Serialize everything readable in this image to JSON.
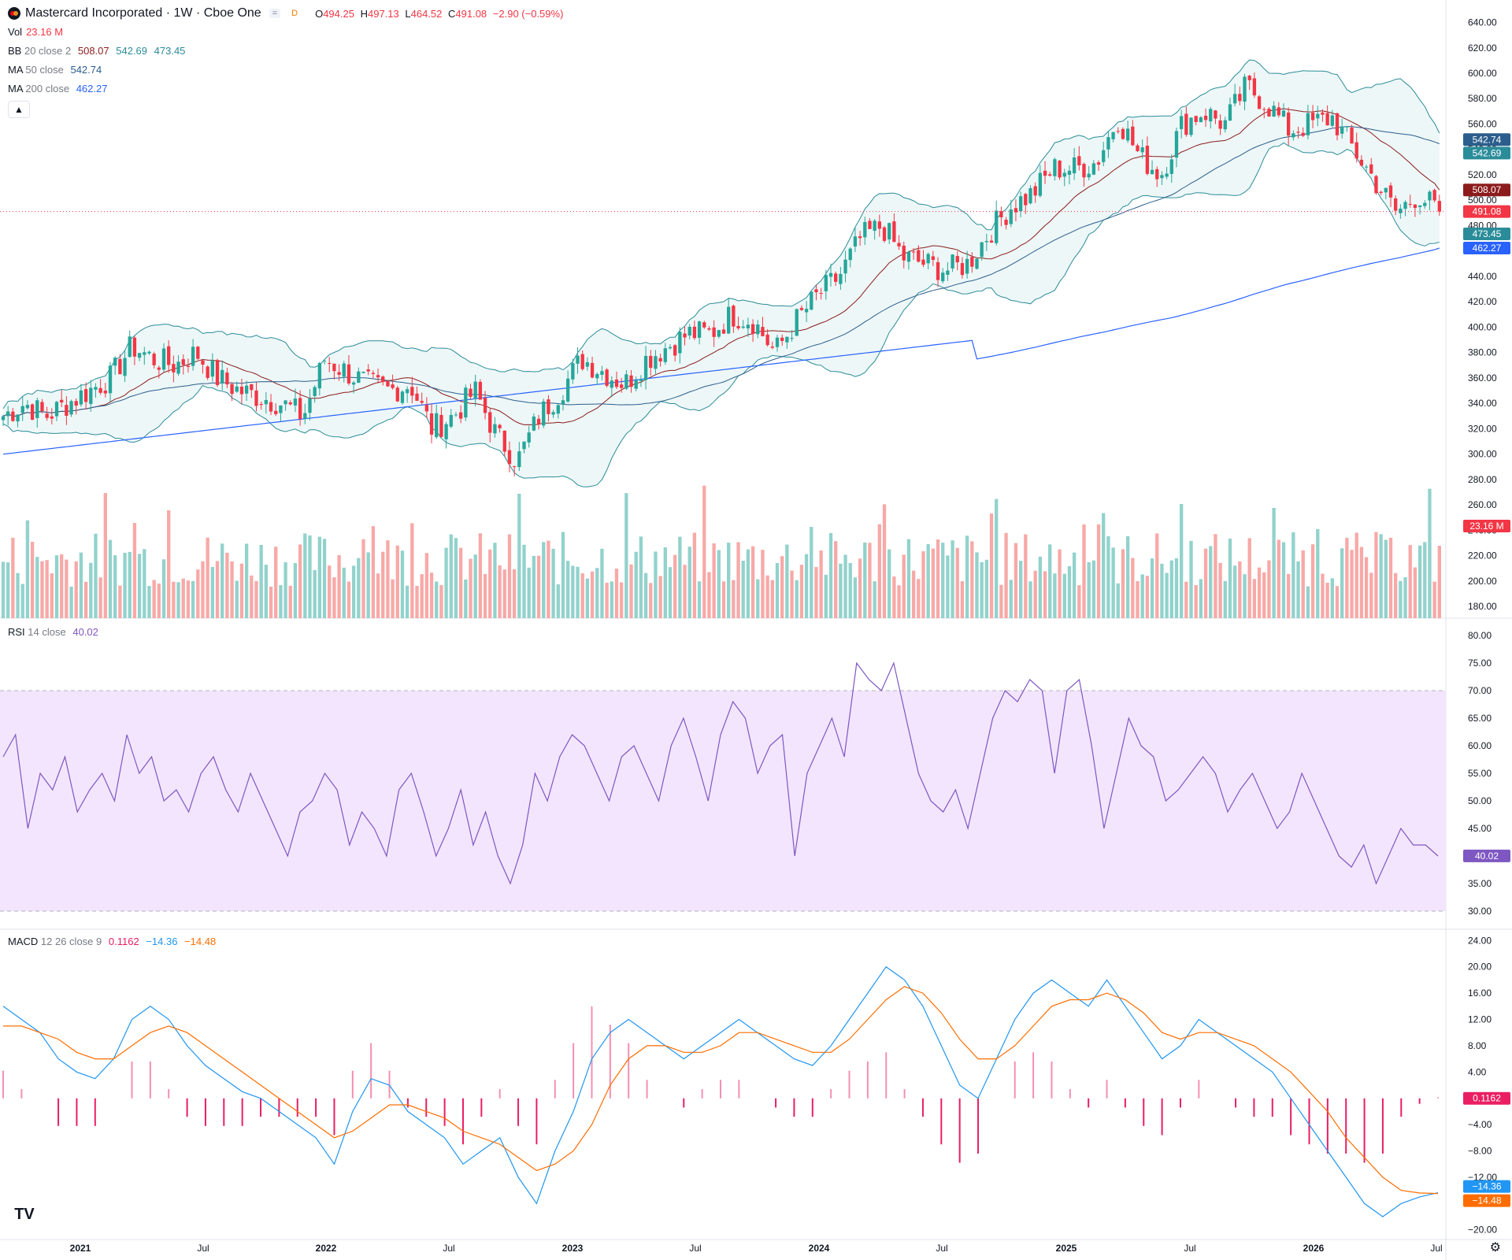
{
  "header": {
    "symbol": "Mastercard Incorporated · 1W · Cboe One",
    "badge_eq": "=",
    "badge_d": "D",
    "o_label": "O",
    "o_value": "494.25",
    "h_label": "H",
    "h_value": "497.13",
    "l_label": "L",
    "l_value": "464.52",
    "c_label": "C",
    "c_value": "491.08",
    "change": "−2.90 (−0.59%)"
  },
  "legend": {
    "vol_label": "Vol",
    "vol_value": "23.16 M",
    "bb_label": "BB",
    "bb_params": "20 close 2",
    "bb_basis": "508.07",
    "bb_upper": "542.69",
    "bb_lower": "473.45",
    "ma50_label": "MA",
    "ma50_params": "50 close",
    "ma50_value": "542.74",
    "ma200_label": "MA",
    "ma200_params": "200 close",
    "ma200_value": "462.27",
    "rsi_label": "RSI",
    "rsi_params": "14 close",
    "rsi_value": "40.02",
    "macd_label": "MACD",
    "macd_params": "12 26 close 9",
    "macd_hist": "0.1162",
    "macd_line": "−14.36",
    "macd_signal": "−14.48",
    "collapse_icon": "chevron-up-icon"
  },
  "colors": {
    "up": "#26a69a",
    "down": "#f23645",
    "vol_up": "#92d2cc",
    "vol_down": "#f7a9a7",
    "bb_band": "#2b8c99",
    "bb_basis": "#8c1c1c",
    "bb_fill": "#e6f4f4",
    "ma50": "#2b5e8c",
    "ma200": "#2962ff",
    "rsi": "#7e57c2",
    "rsi_band": "#f3e5fd",
    "macd": "#2196f3",
    "signal": "#ff6d00",
    "hist": "#e91e63"
  },
  "chart_data": [
    {
      "type": "candlestick",
      "title": "Mastercard Incorporated · 1W · Cboe One",
      "x_labels": [
        "2021",
        "Jul",
        "2022",
        "Jul",
        "2023",
        "Jul",
        "2024",
        "Jul",
        "2025",
        "Jul",
        "2026",
        "Jul"
      ],
      "y_ticks": [
        640,
        620,
        600,
        580,
        560,
        540,
        520,
        500,
        480,
        460,
        440,
        420,
        400,
        380,
        360,
        340,
        320,
        300,
        280,
        260,
        240,
        220,
        200,
        180
      ],
      "y_tick_labels": [
        "640.00",
        "620.00",
        "600.00",
        "580.00",
        "560.00",
        "540.00",
        "520.00",
        "500.00",
        "480.00",
        "460.00",
        "440.00",
        "420.00",
        "400.00",
        "380.00",
        "360.00",
        "340.00",
        "320.00",
        "300.00",
        "280.00",
        "260.00",
        "240.00",
        "220.00",
        "200.00",
        "180.00"
      ],
      "ylim": [
        172,
        649
      ],
      "close_series": [
        [
          "2020-10",
          330
        ],
        [
          "2020-11",
          340
        ],
        [
          "2020-12",
          330
        ],
        [
          "2021-01",
          340
        ],
        [
          "2021-02",
          350
        ],
        [
          "2021-03",
          360
        ],
        [
          "2021-04",
          385
        ],
        [
          "2021-05",
          375
        ],
        [
          "2021-06",
          370
        ],
        [
          "2021-07",
          380
        ],
        [
          "2021-08",
          360
        ],
        [
          "2021-09",
          350
        ],
        [
          "2021-10",
          345
        ],
        [
          "2021-11",
          340
        ],
        [
          "2021-12",
          330
        ],
        [
          "2022-01",
          375
        ],
        [
          "2022-02",
          365
        ],
        [
          "2022-03",
          355
        ],
        [
          "2022-04",
          350
        ],
        [
          "2022-05",
          355
        ],
        [
          "2022-06",
          320
        ],
        [
          "2022-07",
          330
        ],
        [
          "2022-08",
          350
        ],
        [
          "2022-09",
          315
        ],
        [
          "2022-10",
          295
        ],
        [
          "2022-11",
          330
        ],
        [
          "2022-12",
          350
        ],
        [
          "2023-01",
          375
        ],
        [
          "2023-02",
          365
        ],
        [
          "2023-03",
          355
        ],
        [
          "2023-04",
          375
        ],
        [
          "2023-05",
          385
        ],
        [
          "2023-06",
          395
        ],
        [
          "2023-07",
          395
        ],
        [
          "2023-08",
          410
        ],
        [
          "2023-09",
          405
        ],
        [
          "2023-10",
          380
        ],
        [
          "2023-11",
          405
        ],
        [
          "2023-12",
          425
        ],
        [
          "2024-01",
          440
        ],
        [
          "2024-02",
          470
        ],
        [
          "2024-03",
          480
        ],
        [
          "2024-04",
          455
        ],
        [
          "2024-05",
          450
        ],
        [
          "2024-06",
          445
        ],
        [
          "2024-07",
          450
        ],
        [
          "2024-08",
          475
        ],
        [
          "2024-09",
          495
        ],
        [
          "2024-10",
          505
        ],
        [
          "2024-11",
          525
        ],
        [
          "2024-12",
          525
        ],
        [
          "2025-01",
          530
        ],
        [
          "2025-02",
          565
        ],
        [
          "2025-03",
          535
        ],
        [
          "2025-04",
          520
        ],
        [
          "2025-05",
          560
        ],
        [
          "2025-06",
          570
        ],
        [
          "2025-07",
          560
        ],
        [
          "2025-08",
          590
        ],
        [
          "2025-09",
          575
        ],
        [
          "2025-10",
          555
        ],
        [
          "2025-11",
          560
        ],
        [
          "2025-12",
          565
        ],
        [
          "2026-01",
          540
        ],
        [
          "2026-02",
          515
        ],
        [
          "2026-03",
          490
        ],
        [
          "2026-04",
          505
        ],
        [
          "2026-05",
          491.08
        ]
      ],
      "open": 494.25,
      "high": 497.13,
      "low": 464.52,
      "close": 491.08,
      "price_labels": [
        {
          "text": "542.74",
          "value": 542.74,
          "color": "#2b5e8c"
        },
        {
          "text": "542.69",
          "value": 542.69,
          "color": "#2b8c99"
        },
        {
          "text": "508.07",
          "value": 508.07,
          "color": "#8c1c1c"
        },
        {
          "text": "491.08",
          "value": 491.08,
          "color": "#f23645"
        },
        {
          "text": "473.45",
          "value": 473.45,
          "color": "#2b8c99"
        },
        {
          "text": "462.27",
          "value": 462.27,
          "color": "#2962ff"
        }
      ]
    },
    {
      "type": "bar",
      "name": "Vol",
      "last_value": "23.16 M"
    },
    {
      "type": "line",
      "name": "RSI",
      "y_ticks": [
        80,
        75,
        70,
        65,
        60,
        55,
        50,
        45,
        40,
        35,
        30
      ],
      "y_tick_labels": [
        "80.00",
        "75.00",
        "70.00",
        "65.00",
        "60.00",
        "55.00",
        "50.00",
        "45.00",
        "40.00",
        "35.00",
        "30.00"
      ],
      "band": [
        30,
        70
      ],
      "ylim": [
        27,
        82
      ],
      "values": [
        58,
        62,
        45,
        55,
        52,
        58,
        48,
        52,
        55,
        50,
        62,
        55,
        58,
        50,
        52,
        48,
        55,
        58,
        52,
        48,
        55,
        50,
        45,
        40,
        48,
        50,
        55,
        52,
        42,
        48,
        45,
        40,
        52,
        55,
        48,
        40,
        45,
        52,
        42,
        48,
        40,
        35,
        42,
        55,
        50,
        58,
        62,
        60,
        55,
        50,
        58,
        60,
        55,
        50,
        60,
        65,
        58,
        50,
        62,
        68,
        65,
        55,
        60,
        62,
        40,
        55,
        60,
        65,
        58,
        75,
        72,
        70,
        75,
        65,
        55,
        50,
        48,
        52,
        45,
        55,
        65,
        70,
        68,
        72,
        70,
        55,
        70,
        72,
        60,
        45,
        55,
        65,
        60,
        58,
        50,
        52,
        55,
        58,
        55,
        48,
        52,
        55,
        50,
        45,
        48,
        55,
        50,
        45,
        40,
        38,
        42,
        35,
        40,
        45,
        42,
        42,
        40
      ],
      "last_value": "40.02"
    },
    {
      "type": "line",
      "name": "MACD",
      "y_ticks": [
        24,
        20,
        16,
        12,
        8,
        4,
        0,
        -4,
        -8,
        -12,
        -16,
        -20
      ],
      "y_tick_labels": [
        "24.00",
        "20.00",
        "16.00",
        "12.00",
        "8.00",
        "4.00",
        "0.1162",
        "−4.00",
        "−8.00",
        "−12.00",
        "−16.00",
        "−20.00"
      ],
      "ylim": [
        -21,
        25
      ],
      "series": [
        {
          "name": "MACD",
          "values": [
            14,
            12,
            10,
            6,
            4,
            3,
            6,
            12,
            14,
            12,
            8,
            5,
            3,
            1,
            0,
            -2,
            -4,
            -6,
            -10,
            -2,
            3,
            2,
            -2,
            -4,
            -6,
            -10,
            -8,
            -6,
            -12,
            -16,
            -8,
            -2,
            6,
            10,
            12,
            10,
            8,
            6,
            8,
            10,
            12,
            10,
            8,
            6,
            5,
            8,
            12,
            16,
            20,
            18,
            14,
            8,
            2,
            0,
            6,
            12,
            16,
            18,
            16,
            14,
            18,
            14,
            10,
            6,
            8,
            12,
            10,
            8,
            6,
            4,
            0,
            -4,
            -8,
            -12,
            -16,
            -18,
            -16,
            -15,
            -14.36
          ]
        },
        {
          "name": "Signal",
          "values": [
            11,
            11,
            10,
            9,
            7,
            6,
            6,
            8,
            10,
            11,
            10,
            8,
            6,
            4,
            2,
            0,
            -2,
            -4,
            -6,
            -5,
            -3,
            -1,
            -1,
            -2,
            -3,
            -5,
            -6,
            -7,
            -9,
            -11,
            -10,
            -8,
            -4,
            2,
            6,
            8,
            8,
            7,
            7,
            8,
            10,
            10,
            9,
            8,
            7,
            7,
            9,
            12,
            15,
            17,
            16,
            13,
            9,
            6,
            6,
            8,
            11,
            14,
            15,
            15,
            16,
            15,
            13,
            10,
            9,
            10,
            10,
            9,
            8,
            6,
            4,
            1,
            -2,
            -6,
            -9,
            -12,
            -14,
            -14.4,
            -14.48
          ]
        }
      ],
      "last_values": [
        "0.1162",
        "−14.36",
        "−14.48"
      ]
    }
  ]
}
